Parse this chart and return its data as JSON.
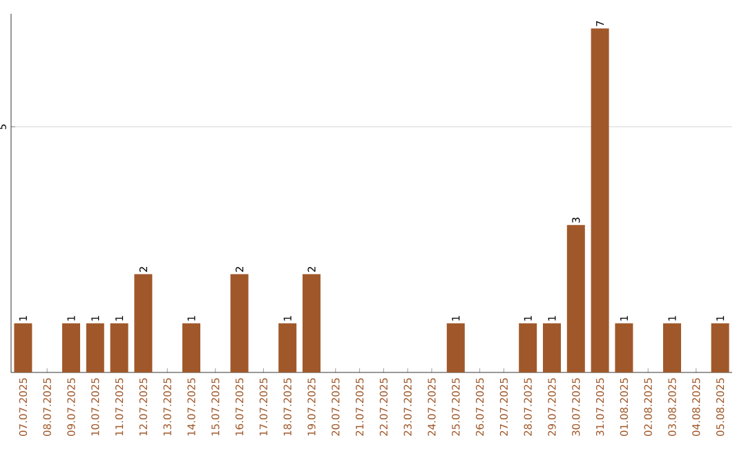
{
  "chart_data": {
    "type": "bar",
    "categories": [
      "07.07.2025",
      "08.07.2025",
      "09.07.2025",
      "10.07.2025",
      "11.07.2025",
      "12.07.2025",
      "13.07.2025",
      "14.07.2025",
      "15.07.2025",
      "16.07.2025",
      "17.07.2025",
      "18.07.2025",
      "19.07.2025",
      "20.07.2025",
      "21.07.2025",
      "22.07.2025",
      "23.07.2025",
      "24.07.2025",
      "25.07.2025",
      "26.07.2025",
      "27.07.2025",
      "28.07.2025",
      "29.07.2025",
      "30.07.2025",
      "31.07.2025",
      "01.08.2025",
      "02.08.2025",
      "03.08.2025",
      "04.08.2025",
      "05.08.2025"
    ],
    "values": [
      1,
      0,
      1,
      1,
      1,
      2,
      0,
      1,
      0,
      2,
      0,
      1,
      2,
      0,
      0,
      0,
      0,
      0,
      1,
      0,
      0,
      1,
      1,
      3,
      7,
      1,
      0,
      1,
      0,
      1
    ],
    "value_labels": [
      "1",
      null,
      "1",
      "1",
      "1",
      "2",
      null,
      "1",
      null,
      "2",
      null,
      "1",
      "2",
      null,
      null,
      null,
      null,
      null,
      "1",
      null,
      null,
      "1",
      "1",
      "3",
      "7",
      "1",
      null,
      "1",
      null,
      "1"
    ],
    "color": "#a0582a",
    "ylim": [
      0,
      7.3
    ],
    "yticks": [
      5
    ],
    "grid": "y"
  }
}
